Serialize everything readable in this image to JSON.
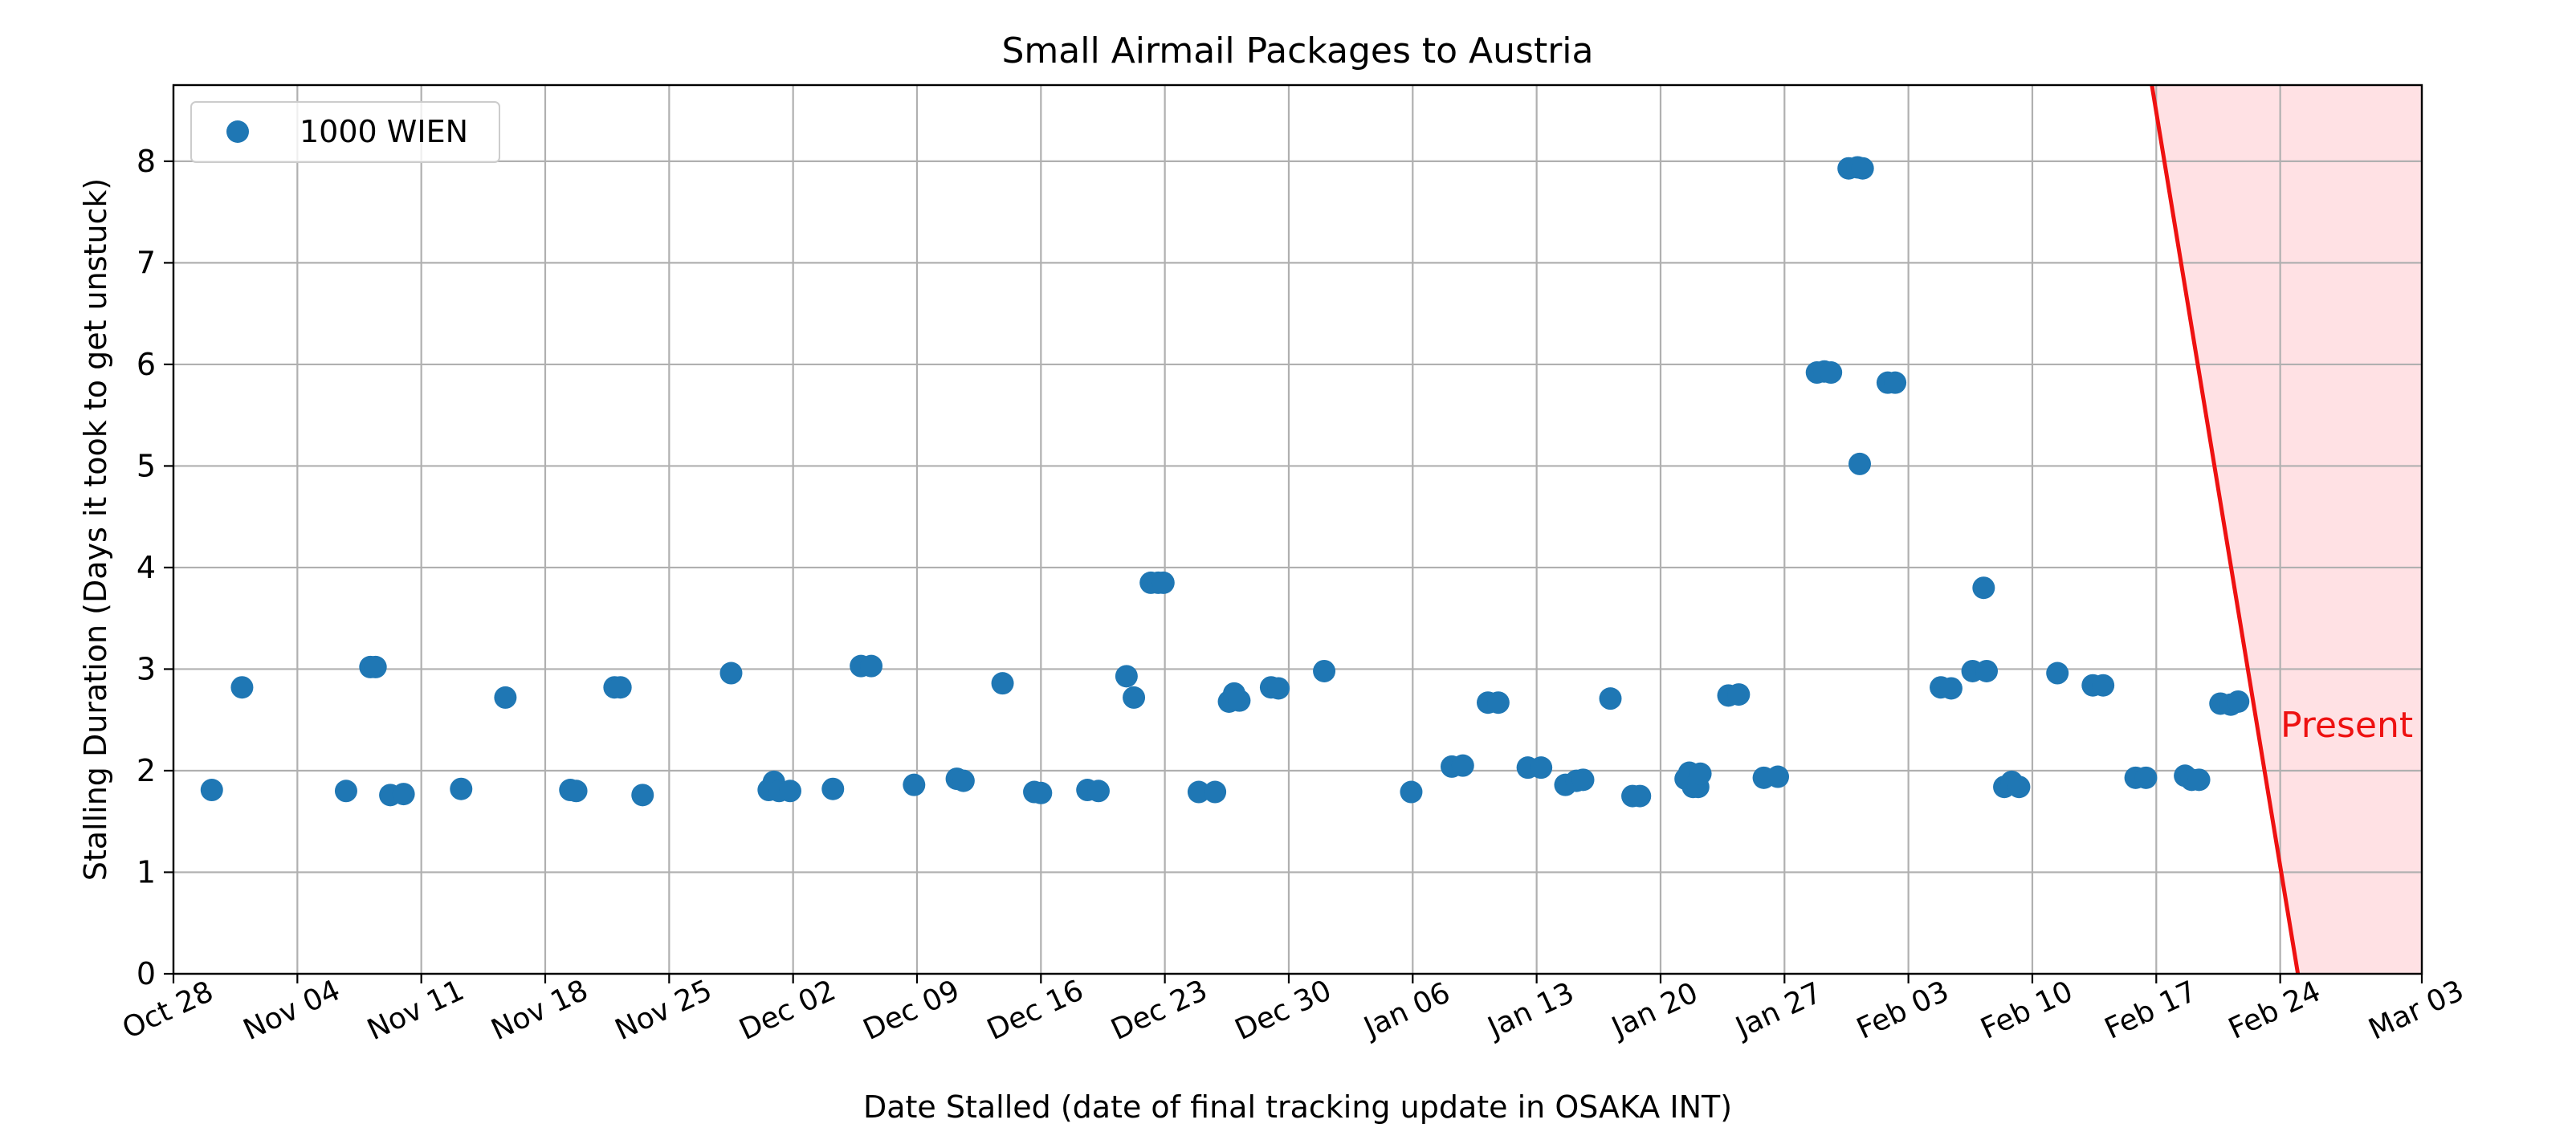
{
  "chart_data": {
    "type": "scatter",
    "title": "Small Airmail Packages to Austria",
    "xlabel": "Date Stalled (date of final tracking update in OSAKA INT)",
    "ylabel": "Stalling Duration (Days it took to get unstuck)",
    "x_axis_type": "date",
    "xlim": [
      "2023-10-28",
      "2024-03-03"
    ],
    "ylim": [
      0,
      8.75
    ],
    "x_ticks": [
      {
        "date": "2023-10-28",
        "label": "Oct 28"
      },
      {
        "date": "2023-11-04",
        "label": "Nov 04"
      },
      {
        "date": "2023-11-11",
        "label": "Nov 11"
      },
      {
        "date": "2023-11-18",
        "label": "Nov 18"
      },
      {
        "date": "2023-11-25",
        "label": "Nov 25"
      },
      {
        "date": "2023-12-02",
        "label": "Dec 02"
      },
      {
        "date": "2023-12-09",
        "label": "Dec 09"
      },
      {
        "date": "2023-12-16",
        "label": "Dec 16"
      },
      {
        "date": "2023-12-23",
        "label": "Dec 23"
      },
      {
        "date": "2023-12-30",
        "label": "Dec 30"
      },
      {
        "date": "2024-01-06",
        "label": "Jan 06"
      },
      {
        "date": "2024-01-13",
        "label": "Jan 13"
      },
      {
        "date": "2024-01-20",
        "label": "Jan 20"
      },
      {
        "date": "2024-01-27",
        "label": "Jan 27"
      },
      {
        "date": "2024-02-03",
        "label": "Feb 03"
      },
      {
        "date": "2024-02-10",
        "label": "Feb 10"
      },
      {
        "date": "2024-02-17",
        "label": "Feb 17"
      },
      {
        "date": "2024-02-24",
        "label": "Feb 24"
      },
      {
        "date": "2024-03-03",
        "label": "Mar 03"
      }
    ],
    "y_ticks": [
      0,
      1,
      2,
      3,
      4,
      5,
      6,
      7,
      8
    ],
    "tick_label_rotation_deg": 25,
    "grid": true,
    "legend": {
      "position": "top-left",
      "entries": [
        "1000 WIEN"
      ]
    },
    "series": [
      {
        "name": "1000 WIEN",
        "color": "#1f77b4",
        "points": [
          [
            "2023-10-30T04:00",
            1.81
          ],
          [
            "2023-10-31T21:00",
            2.82
          ],
          [
            "2023-11-06T18:00",
            1.8
          ],
          [
            "2023-11-08T03:00",
            3.02
          ],
          [
            "2023-11-08T10:00",
            3.02
          ],
          [
            "2023-11-09T06:00",
            1.76
          ],
          [
            "2023-11-10T00:00",
            1.77
          ],
          [
            "2023-11-13T06:00",
            1.82
          ],
          [
            "2023-11-15T18:00",
            2.72
          ],
          [
            "2023-11-19T10:00",
            1.81
          ],
          [
            "2023-11-19T18:00",
            1.8
          ],
          [
            "2023-11-21T22:00",
            2.82
          ],
          [
            "2023-11-22T06:00",
            2.82
          ],
          [
            "2023-11-23T12:00",
            1.76
          ],
          [
            "2023-11-28T12:00",
            2.96
          ],
          [
            "2023-11-30T15:00",
            1.81
          ],
          [
            "2023-11-30T22:00",
            1.89
          ],
          [
            "2023-12-01T05:00",
            1.8
          ],
          [
            "2023-12-01T20:00",
            1.8
          ],
          [
            "2023-12-04T06:00",
            1.82
          ],
          [
            "2023-12-05T20:00",
            3.03
          ],
          [
            "2023-12-06T10:00",
            3.03
          ],
          [
            "2023-12-08T20:00",
            1.86
          ],
          [
            "2023-12-11T06:00",
            1.92
          ],
          [
            "2023-12-11T15:00",
            1.9
          ],
          [
            "2023-12-13T20:00",
            2.86
          ],
          [
            "2023-12-15T15:00",
            1.79
          ],
          [
            "2023-12-16T00:00",
            1.78
          ],
          [
            "2023-12-18T15:00",
            1.81
          ],
          [
            "2023-12-19T06:00",
            1.8
          ],
          [
            "2023-12-20T20:00",
            2.93
          ],
          [
            "2023-12-21T06:00",
            2.72
          ],
          [
            "2023-12-22T05:00",
            3.85
          ],
          [
            "2023-12-22T15:00",
            3.85
          ],
          [
            "2023-12-22T22:00",
            3.85
          ],
          [
            "2023-12-24T22:00",
            1.79
          ],
          [
            "2023-12-25T20:00",
            1.79
          ],
          [
            "2023-12-26T15:00",
            2.68
          ],
          [
            "2023-12-26T22:00",
            2.76
          ],
          [
            "2023-12-27T05:00",
            2.69
          ],
          [
            "2023-12-29T00:00",
            2.82
          ],
          [
            "2023-12-29T10:00",
            2.81
          ],
          [
            "2024-01-01T00:00",
            2.98
          ],
          [
            "2024-01-05T22:00",
            1.79
          ],
          [
            "2024-01-08T05:00",
            2.04
          ],
          [
            "2024-01-08T20:00",
            2.05
          ],
          [
            "2024-01-10T06:00",
            2.67
          ],
          [
            "2024-01-10T20:00",
            2.67
          ],
          [
            "2024-01-12T12:00",
            2.03
          ],
          [
            "2024-01-13T06:00",
            2.03
          ],
          [
            "2024-01-14T15:00",
            1.86
          ],
          [
            "2024-01-15T06:00",
            1.9
          ],
          [
            "2024-01-15T15:00",
            1.91
          ],
          [
            "2024-01-17T04:00",
            2.71
          ],
          [
            "2024-01-18T10:00",
            1.75
          ],
          [
            "2024-01-18T20:00",
            1.75
          ],
          [
            "2024-01-21T10:00",
            1.92
          ],
          [
            "2024-01-21T15:00",
            1.98
          ],
          [
            "2024-01-21T20:00",
            1.84
          ],
          [
            "2024-01-22T03:00",
            1.84
          ],
          [
            "2024-01-22T06:00",
            1.97
          ],
          [
            "2024-01-23T20:00",
            2.74
          ],
          [
            "2024-01-24T10:00",
            2.75
          ],
          [
            "2024-01-25T20:00",
            1.93
          ],
          [
            "2024-01-26T15:00",
            1.94
          ],
          [
            "2024-01-28T20:00",
            5.92
          ],
          [
            "2024-01-29T06:00",
            5.93
          ],
          [
            "2024-01-29T15:00",
            5.92
          ],
          [
            "2024-01-30T15:00",
            7.93
          ],
          [
            "2024-01-31T03:00",
            7.94
          ],
          [
            "2024-01-31T06:00",
            5.02
          ],
          [
            "2024-01-31T10:00",
            7.93
          ],
          [
            "2024-02-01T20:00",
            5.82
          ],
          [
            "2024-02-02T06:00",
            5.82
          ],
          [
            "2024-02-04T20:00",
            2.82
          ],
          [
            "2024-02-05T10:00",
            2.81
          ],
          [
            "2024-02-06T15:00",
            2.98
          ],
          [
            "2024-02-07T06:00",
            3.8
          ],
          [
            "2024-02-07T10:00",
            2.98
          ],
          [
            "2024-02-08T10:00",
            1.84
          ],
          [
            "2024-02-08T20:00",
            1.89
          ],
          [
            "2024-02-09T06:00",
            1.84
          ],
          [
            "2024-02-11T10:00",
            2.96
          ],
          [
            "2024-02-13T10:00",
            2.84
          ],
          [
            "2024-02-14T00:00",
            2.84
          ],
          [
            "2024-02-15T20:00",
            1.93
          ],
          [
            "2024-02-16T10:00",
            1.93
          ],
          [
            "2024-02-18T15:00",
            1.95
          ],
          [
            "2024-02-19T00:00",
            1.91
          ],
          [
            "2024-02-19T10:00",
            1.91
          ],
          [
            "2024-02-20T15:00",
            2.66
          ],
          [
            "2024-02-21T05:00",
            2.65
          ],
          [
            "2024-02-21T15:00",
            2.68
          ]
        ]
      }
    ],
    "present_marker": {
      "label": "Present",
      "color": "#ee1111",
      "shade_color": "#ffe1e4",
      "line_start": {
        "date": "2024-02-16T18:00",
        "y": 8.75
      },
      "line_end": {
        "date": "2024-02-25T00:00",
        "y": 0
      },
      "shade_to": "2024-03-03"
    }
  }
}
